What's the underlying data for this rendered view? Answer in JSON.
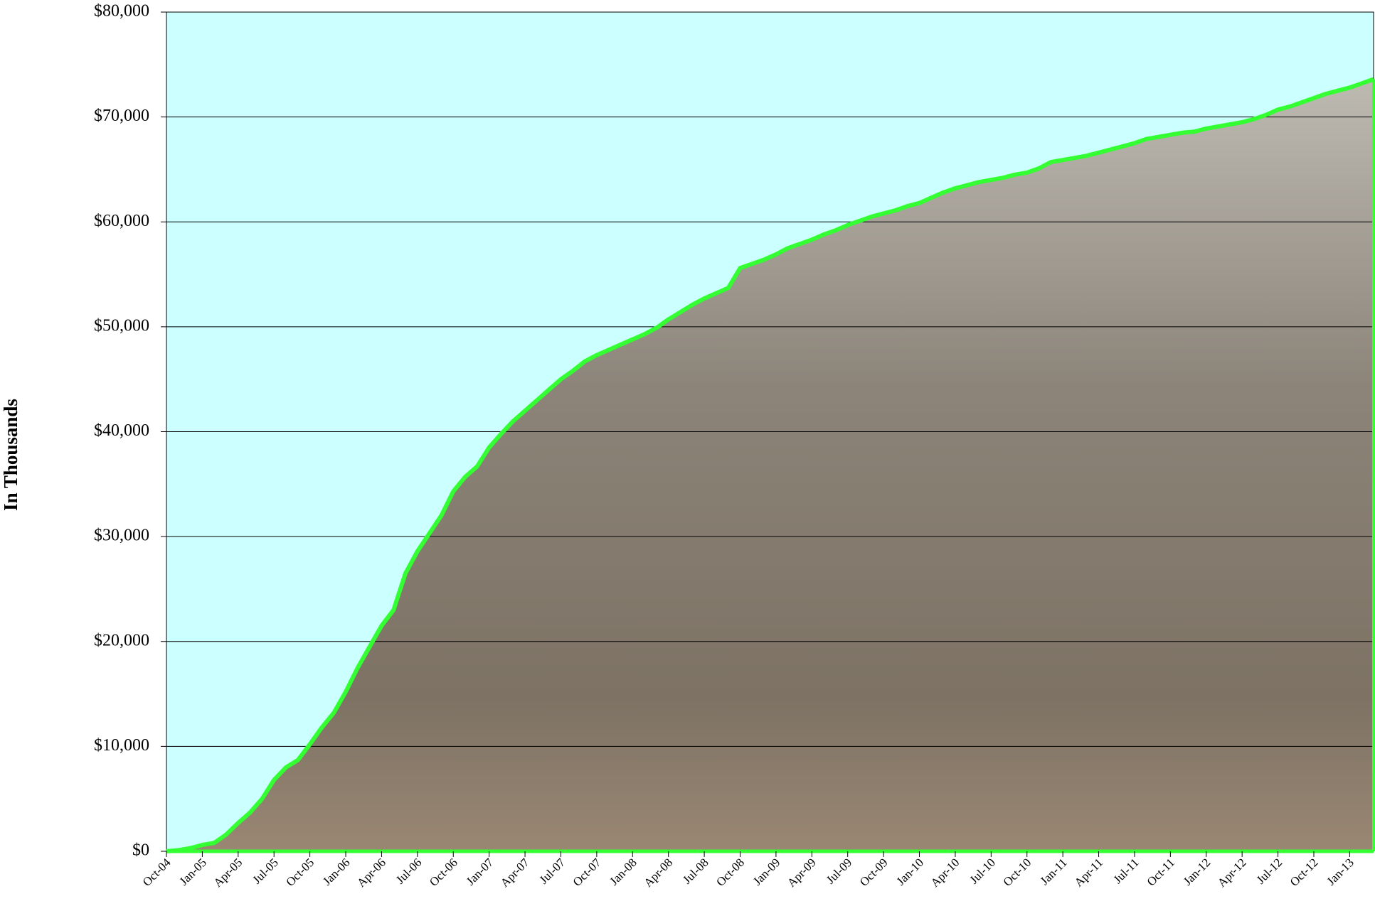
{
  "chart_data": {
    "type": "area",
    "y_label": "In Thousands",
    "categories": [
      "Oct-04",
      null,
      null,
      "Jan-05",
      null,
      null,
      "Apr-05",
      null,
      null,
      "Jul-05",
      null,
      null,
      "Oct-05",
      null,
      null,
      "Jan-06",
      null,
      null,
      "Apr-06",
      null,
      null,
      "Jul-06",
      null,
      null,
      "Oct-06",
      null,
      null,
      "Jan-07",
      null,
      null,
      "Apr-07",
      null,
      null,
      "Jul-07",
      null,
      null,
      "Oct-07",
      null,
      null,
      "Jan-08",
      null,
      null,
      "Apr-08",
      null,
      null,
      "Jul-08",
      null,
      null,
      "Oct-08",
      null,
      null,
      "Jan-09",
      null,
      null,
      "Apr-09",
      null,
      null,
      "Jul-09",
      null,
      null,
      "Oct-09",
      null,
      null,
      "Jan-10",
      null,
      null,
      "Apr-10",
      null,
      null,
      "Jul-10",
      null,
      null,
      "Oct-10",
      null,
      null,
      "Jan-11",
      null,
      null,
      "Apr-11",
      null,
      null,
      "Jul-11",
      null,
      null,
      "Oct-11",
      null,
      null,
      "Jan-12",
      null,
      null,
      "Apr-12",
      null,
      null,
      "Jul-12",
      null,
      null,
      "Oct-12",
      null,
      null,
      "Jan-13",
      null,
      null
    ],
    "values": [
      0,
      100,
      300,
      600,
      800,
      1600,
      2700,
      3700,
      5000,
      6800,
      8000,
      8700,
      10200,
      11800,
      13200,
      15200,
      17500,
      19500,
      21500,
      23000,
      26500,
      28600,
      30300,
      32000,
      34300,
      35700,
      36700,
      38500,
      39800,
      41000,
      42000,
      43000,
      44000,
      45000,
      45800,
      46700,
      47300,
      47800,
      48300,
      48800,
      49300,
      49900,
      50700,
      51400,
      52100,
      52700,
      53200,
      53700,
      55600,
      56000,
      56400,
      56900,
      57500,
      57900,
      58300,
      58800,
      59200,
      59700,
      60100,
      60500,
      60800,
      61100,
      61500,
      61800,
      62300,
      62800,
      63200,
      63500,
      63800,
      64000,
      64200,
      64500,
      64700,
      65100,
      65700,
      65900,
      66100,
      66300,
      66600,
      66900,
      67200,
      67500,
      67900,
      68100,
      68300,
      68500,
      68600,
      68900,
      69100,
      69300,
      69500,
      69800,
      70200,
      70700,
      71000,
      71400,
      71800,
      72200,
      72500,
      72800,
      73200,
      73600
    ],
    "color": "#33ff33",
    "area_fill": "#8c8479",
    "background": "#ccffff",
    "ylim": [
      0,
      80000
    ],
    "yticks": [
      {
        "value": 0,
        "label": "$0"
      },
      {
        "value": 10000,
        "label": "$10,000"
      },
      {
        "value": 20000,
        "label": "$20,000"
      },
      {
        "value": 30000,
        "label": "$30,000"
      },
      {
        "value": 40000,
        "label": "$40,000"
      },
      {
        "value": 50000,
        "label": "$50,000"
      },
      {
        "value": 60000,
        "label": "$60,000"
      },
      {
        "value": 70000,
        "label": "$70,000"
      },
      {
        "value": 80000,
        "label": "$80,000"
      }
    ],
    "grid": true
  }
}
